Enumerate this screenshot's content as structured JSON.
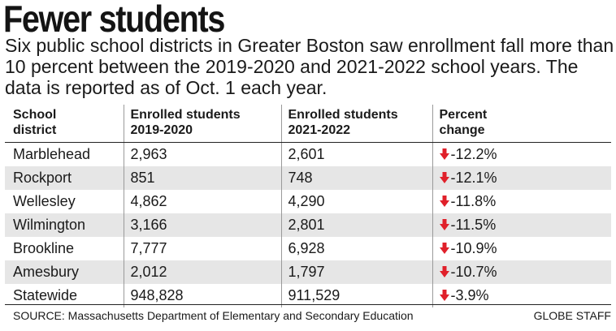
{
  "title": "Fewer students",
  "subtitle": "Six public school districts in Greater Boston saw enrollment fall more than 10 percent between the 2019-2020 and 2021-2022 school years. The data is reported as of Oct. 1 each year.",
  "table": {
    "headers": [
      [
        "School",
        "district"
      ],
      [
        "Enrolled students",
        "2019-2020"
      ],
      [
        "Enrolled students",
        "2021-2022"
      ],
      [
        "Percent",
        "change"
      ]
    ],
    "rows": [
      {
        "district": "Marblehead",
        "enrolled_2019_2020": "2,963",
        "enrolled_2021_2022": "2,601",
        "percent_change": "-12.2%"
      },
      {
        "district": "Rockport",
        "enrolled_2019_2020": "851",
        "enrolled_2021_2022": "748",
        "percent_change": "-12.1%"
      },
      {
        "district": "Wellesley",
        "enrolled_2019_2020": "4,862",
        "enrolled_2021_2022": "4,290",
        "percent_change": "-11.8%"
      },
      {
        "district": "Wilmington",
        "enrolled_2019_2020": "3,166",
        "enrolled_2021_2022": "2,801",
        "percent_change": "-11.5%"
      },
      {
        "district": "Brookline",
        "enrolled_2019_2020": "7,777",
        "enrolled_2021_2022": "6,928",
        "percent_change": "-10.9%"
      },
      {
        "district": "Amesbury",
        "enrolled_2019_2020": "2,012",
        "enrolled_2021_2022": "1,797",
        "percent_change": "-10.7%"
      },
      {
        "district": "Statewide",
        "enrolled_2019_2020": "948,828",
        "enrolled_2021_2022": "911,529",
        "percent_change": "-3.9%"
      }
    ],
    "change_icon": "down-arrow-icon",
    "change_icon_color": "#e0202a",
    "stripe_color": "#e6e6e6"
  },
  "source": "SOURCE: Massachusetts Department of Elementary and Secondary Education",
  "credit": "GLOBE STAFF"
}
